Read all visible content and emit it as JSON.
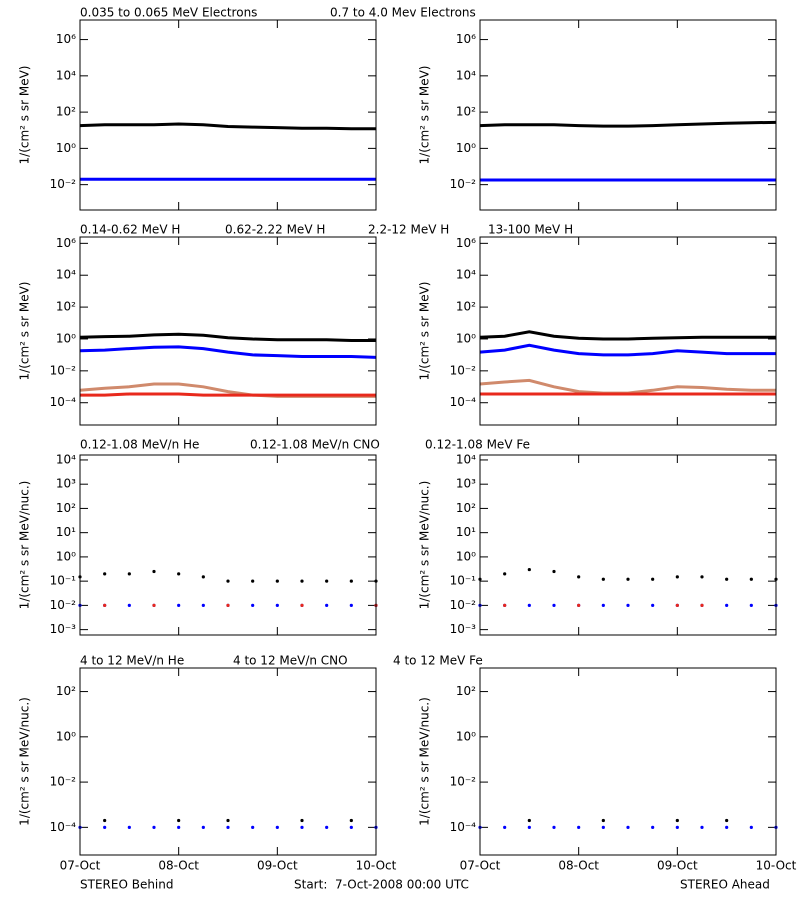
{
  "chart_data": [
    {
      "type": "line",
      "log": true,
      "ylabel": "1/(cm² s sr MeV)",
      "xlim": [
        0,
        3
      ],
      "xticks": [
        0,
        1,
        2,
        3
      ],
      "ylim": [
        0.0004,
        12000000
      ],
      "yticks": [
        {
          "value": 0.01,
          "label": "10⁻²"
        },
        {
          "value": 1,
          "label": "10⁰"
        },
        {
          "value": 100,
          "label": "10²"
        },
        {
          "value": 10000,
          "label": "10⁴"
        },
        {
          "value": 1000000,
          "label": "10⁶"
        }
      ],
      "x": [
        0,
        0.25,
        0.5,
        0.75,
        1,
        1.25,
        1.5,
        1.75,
        2,
        2.25,
        2.5,
        2.75,
        3
      ],
      "series": [
        {
          "name": "0.035 to 0.065 MeV Electrons",
          "color": "#000000",
          "values": [
            18,
            20,
            20,
            20,
            22,
            20,
            16,
            15,
            14,
            13,
            13,
            12,
            12
          ]
        },
        {
          "name": "0.7 to 4.0 Mev Electrons",
          "color": "#0000ff",
          "values": [
            0.02,
            0.02,
            0.02,
            0.02,
            0.02,
            0.02,
            0.02,
            0.02,
            0.02,
            0.02,
            0.02,
            0.02,
            0.02
          ]
        }
      ]
    },
    {
      "type": "line",
      "log": true,
      "ylabel": "1/(cm² s sr MeV)",
      "xlim": [
        0,
        3
      ],
      "xticks": [
        0,
        1,
        2,
        3
      ],
      "ylim": [
        0.0004,
        12000000
      ],
      "yticks": [
        {
          "value": 0.01,
          "label": "10⁻²"
        },
        {
          "value": 1,
          "label": "10⁰"
        },
        {
          "value": 100,
          "label": "10²"
        },
        {
          "value": 10000,
          "label": "10⁴"
        },
        {
          "value": 1000000,
          "label": "10⁶"
        }
      ],
      "x": [
        0,
        0.25,
        0.5,
        0.75,
        1,
        1.25,
        1.5,
        1.75,
        2,
        2.25,
        2.5,
        2.75,
        3
      ],
      "series": [
        {
          "color": "#000000",
          "values": [
            18,
            20,
            20,
            20,
            18,
            17,
            17,
            18,
            20,
            22,
            24,
            26,
            27
          ]
        },
        {
          "color": "#0000ff",
          "values": [
            0.018,
            0.018,
            0.018,
            0.018,
            0.018,
            0.018,
            0.018,
            0.018,
            0.018,
            0.018,
            0.018,
            0.018,
            0.018
          ]
        }
      ]
    },
    {
      "type": "line",
      "log": true,
      "ylabel": "1/(cm² s sr MeV)",
      "xlim": [
        0,
        3
      ],
      "xticks": [
        0,
        1,
        2,
        3
      ],
      "ylim": [
        4e-06,
        2500000
      ],
      "yticks": [
        {
          "value": 0.0001,
          "label": "10⁻⁴"
        },
        {
          "value": 0.01,
          "label": "10⁻²"
        },
        {
          "value": 1,
          "label": "10⁰"
        },
        {
          "value": 100,
          "label": "10²"
        },
        {
          "value": 10000,
          "label": "10⁴"
        },
        {
          "value": 1000000,
          "label": "10⁶"
        }
      ],
      "x": [
        0,
        0.25,
        0.5,
        0.75,
        1,
        1.25,
        1.5,
        1.75,
        2,
        2.25,
        2.5,
        2.75,
        3
      ],
      "series": [
        {
          "name": "0.14-0.62 MeV H",
          "color": "#000000",
          "values": [
            1.3,
            1.4,
            1.5,
            1.8,
            2.0,
            1.7,
            1.2,
            1.0,
            0.9,
            0.9,
            0.9,
            0.8,
            0.8
          ]
        },
        {
          "name": "0.62-2.22 MeV H",
          "color": "#0000ff",
          "values": [
            0.18,
            0.2,
            0.25,
            0.3,
            0.32,
            0.25,
            0.15,
            0.1,
            0.09,
            0.08,
            0.08,
            0.08,
            0.07
          ]
        },
        {
          "name": "2.2-12 MeV H",
          "color": "#d08a6c",
          "values": [
            0.0006,
            0.0008,
            0.001,
            0.0015,
            0.0015,
            0.001,
            0.0005,
            0.0003,
            0.00025,
            0.00025,
            0.00025,
            0.00025,
            0.00025
          ]
        },
        {
          "name": "13-100 MeV H",
          "color": "#e8291c",
          "values": [
            0.0003,
            0.0003,
            0.00035,
            0.00035,
            0.00035,
            0.0003,
            0.0003,
            0.0003,
            0.0003,
            0.0003,
            0.0003,
            0.0003,
            0.0003
          ]
        }
      ]
    },
    {
      "type": "line",
      "log": true,
      "ylabel": "1/(cm² s sr MeV)",
      "xlim": [
        0,
        3
      ],
      "xticks": [
        0,
        1,
        2,
        3
      ],
      "ylim": [
        4e-06,
        2500000
      ],
      "yticks": [
        {
          "value": 0.0001,
          "label": "10⁻⁴"
        },
        {
          "value": 0.01,
          "label": "10⁻²"
        },
        {
          "value": 1,
          "label": "10⁰"
        },
        {
          "value": 100,
          "label": "10²"
        },
        {
          "value": 10000,
          "label": "10⁴"
        },
        {
          "value": 1000000,
          "label": "10⁶"
        }
      ],
      "x": [
        0,
        0.25,
        0.5,
        0.75,
        1,
        1.25,
        1.5,
        1.75,
        2,
        2.25,
        2.5,
        2.75,
        3
      ],
      "series": [
        {
          "color": "#000000",
          "values": [
            1.3,
            1.5,
            2.8,
            1.5,
            1.1,
            1.0,
            1.0,
            1.1,
            1.2,
            1.3,
            1.3,
            1.3,
            1.3
          ]
        },
        {
          "color": "#0000ff",
          "values": [
            0.15,
            0.2,
            0.4,
            0.2,
            0.12,
            0.1,
            0.1,
            0.12,
            0.18,
            0.15,
            0.12,
            0.12,
            0.12
          ]
        },
        {
          "color": "#d08a6c",
          "values": [
            0.0015,
            0.002,
            0.0025,
            0.001,
            0.0005,
            0.0004,
            0.0004,
            0.0006,
            0.001,
            0.0009,
            0.0007,
            0.0006,
            0.0006
          ]
        },
        {
          "color": "#e8291c",
          "values": [
            0.00035,
            0.00035,
            0.00035,
            0.00035,
            0.00035,
            0.00035,
            0.00035,
            0.00035,
            0.00035,
            0.00035,
            0.00035,
            0.00035,
            0.00035
          ]
        }
      ]
    },
    {
      "type": "scatter",
      "log": true,
      "ylabel": "1/(cm² s sr MeV/nuc.)",
      "xlim": [
        0,
        3
      ],
      "xticks": [
        0,
        1,
        2,
        3
      ],
      "ylim": [
        0.0006,
        16000
      ],
      "yticks": [
        {
          "value": 0.001,
          "label": "10⁻³"
        },
        {
          "value": 0.01,
          "label": "10⁻²"
        },
        {
          "value": 0.1,
          "label": "10⁻¹"
        },
        {
          "value": 1,
          "label": "10⁰"
        },
        {
          "value": 10,
          "label": "10¹"
        },
        {
          "value": 100,
          "label": "10²"
        },
        {
          "value": 1000,
          "label": "10³"
        },
        {
          "value": 10000,
          "label": "10⁴"
        }
      ],
      "x": [
        0,
        0.25,
        0.5,
        0.75,
        1,
        1.25,
        1.5,
        1.75,
        2,
        2.25,
        2.5,
        2.75,
        3
      ],
      "series": [
        {
          "name": "0.12-1.08 MeV/n He",
          "color": "#000000",
          "values": [
            0.15,
            0.2,
            0.2,
            0.25,
            0.2,
            0.15,
            0.1,
            0.1,
            0.1,
            0.1,
            0.1,
            0.1,
            0.1
          ]
        },
        {
          "name": "0.12-1.08 MeV/n CNO",
          "color": "#0000ff",
          "values": [
            0.01,
            0.01,
            0.01,
            0.01,
            0.01,
            0.01,
            0.01,
            0.01,
            0.01,
            0.01,
            0.01,
            0.01,
            0.01
          ]
        },
        {
          "name": "0.12-1.08 MeV Fe",
          "color": "#e8291c",
          "values": [
            null,
            0.01,
            null,
            0.01,
            null,
            null,
            0.01,
            null,
            null,
            0.01,
            null,
            null,
            0.01
          ]
        }
      ]
    },
    {
      "type": "scatter",
      "log": true,
      "ylabel": "1/(cm² s sr MeV/nuc.)",
      "xlim": [
        0,
        3
      ],
      "xticks": [
        0,
        1,
        2,
        3
      ],
      "ylim": [
        0.0006,
        16000
      ],
      "yticks": [
        {
          "value": 0.001,
          "label": "10⁻³"
        },
        {
          "value": 0.01,
          "label": "10⁻²"
        },
        {
          "value": 0.1,
          "label": "10⁻¹"
        },
        {
          "value": 1,
          "label": "10⁰"
        },
        {
          "value": 10,
          "label": "10¹"
        },
        {
          "value": 100,
          "label": "10²"
        },
        {
          "value": 1000,
          "label": "10³"
        },
        {
          "value": 10000,
          "label": "10⁴"
        }
      ],
      "x": [
        0,
        0.25,
        0.5,
        0.75,
        1,
        1.25,
        1.5,
        1.75,
        2,
        2.25,
        2.5,
        2.75,
        3
      ],
      "series": [
        {
          "color": "#000000",
          "values": [
            0.12,
            0.2,
            0.3,
            0.25,
            0.15,
            0.12,
            0.12,
            0.12,
            0.15,
            0.15,
            0.12,
            0.12,
            0.12
          ]
        },
        {
          "color": "#0000ff",
          "values": [
            0.01,
            0.01,
            0.01,
            0.01,
            0.01,
            0.01,
            0.01,
            0.01,
            0.01,
            0.01,
            0.01,
            0.01,
            0.01
          ]
        },
        {
          "color": "#e8291c",
          "values": [
            null,
            0.01,
            null,
            null,
            0.01,
            null,
            null,
            null,
            0.01,
            0.01,
            null,
            null,
            null
          ]
        }
      ]
    },
    {
      "type": "scatter",
      "log": true,
      "ylabel": "1/(cm² s sr MeV/nuc.)",
      "xlim": [
        0,
        3
      ],
      "xticks": [
        {
          "value": 0,
          "label": "07-Oct"
        },
        {
          "value": 1,
          "label": "08-Oct"
        },
        {
          "value": 2,
          "label": "09-Oct"
        },
        {
          "value": 3,
          "label": "10-Oct"
        }
      ],
      "ylim": [
        6e-06,
        1100
      ],
      "yticks": [
        {
          "value": 0.0001,
          "label": "10⁻⁴"
        },
        {
          "value": 0.01,
          "label": "10⁻²"
        },
        {
          "value": 1,
          "label": "10⁰"
        },
        {
          "value": 100,
          "label": "10²"
        }
      ],
      "x": [
        0,
        0.25,
        0.5,
        0.75,
        1,
        1.25,
        1.5,
        1.75,
        2,
        2.25,
        2.5,
        2.75,
        3
      ],
      "series": [
        {
          "name": "4 to 12 MeV/n He",
          "color": "#000000",
          "values": [
            null,
            0.0002,
            null,
            null,
            0.0002,
            null,
            0.0002,
            null,
            null,
            0.0002,
            null,
            0.0002,
            null
          ]
        },
        {
          "name": "4 to 12 MeV/n CNO",
          "color": "#0000ff",
          "values": [
            0.0001,
            0.0001,
            0.0001,
            0.0001,
            0.0001,
            0.0001,
            0.0001,
            0.0001,
            0.0001,
            0.0001,
            0.0001,
            0.0001,
            0.0001
          ]
        },
        {
          "name": "4 to 12 MeV Fe",
          "color": "#e8291c",
          "values": [
            null,
            null,
            null,
            null,
            null,
            null,
            null,
            null,
            null,
            null,
            null,
            null,
            null
          ]
        }
      ]
    },
    {
      "type": "scatter",
      "log": true,
      "ylabel": "1/(cm² s sr MeV/nuc.)",
      "xlim": [
        0,
        3
      ],
      "xticks": [
        {
          "value": 0,
          "label": "07-Oct"
        },
        {
          "value": 1,
          "label": "08-Oct"
        },
        {
          "value": 2,
          "label": "09-Oct"
        },
        {
          "value": 3,
          "label": "10-Oct"
        }
      ],
      "ylim": [
        6e-06,
        1100
      ],
      "yticks": [
        {
          "value": 0.0001,
          "label": "10⁻⁴"
        },
        {
          "value": 0.01,
          "label": "10⁻²"
        },
        {
          "value": 1,
          "label": "10⁰"
        },
        {
          "value": 100,
          "label": "10²"
        }
      ],
      "x": [
        0,
        0.25,
        0.5,
        0.75,
        1,
        1.25,
        1.5,
        1.75,
        2,
        2.25,
        2.5,
        2.75,
        3
      ],
      "series": [
        {
          "color": "#000000",
          "values": [
            null,
            null,
            0.0002,
            null,
            null,
            0.0002,
            null,
            null,
            0.0002,
            null,
            0.0002,
            null,
            null
          ]
        },
        {
          "color": "#0000ff",
          "values": [
            0.0001,
            0.0001,
            0.0001,
            0.0001,
            0.0001,
            0.0001,
            0.0001,
            0.0001,
            0.0001,
            0.0001,
            0.0001,
            0.0001,
            0.0001
          ]
        },
        {
          "color": "#e8291c",
          "values": [
            null,
            null,
            null,
            null,
            null,
            null,
            null,
            null,
            null,
            null,
            null,
            null,
            null
          ]
        }
      ]
    }
  ],
  "footer": {
    "left": "STEREO Behind",
    "center": "Start:  7-Oct-2008 00:00 UTC",
    "right": "STEREO Ahead"
  }
}
